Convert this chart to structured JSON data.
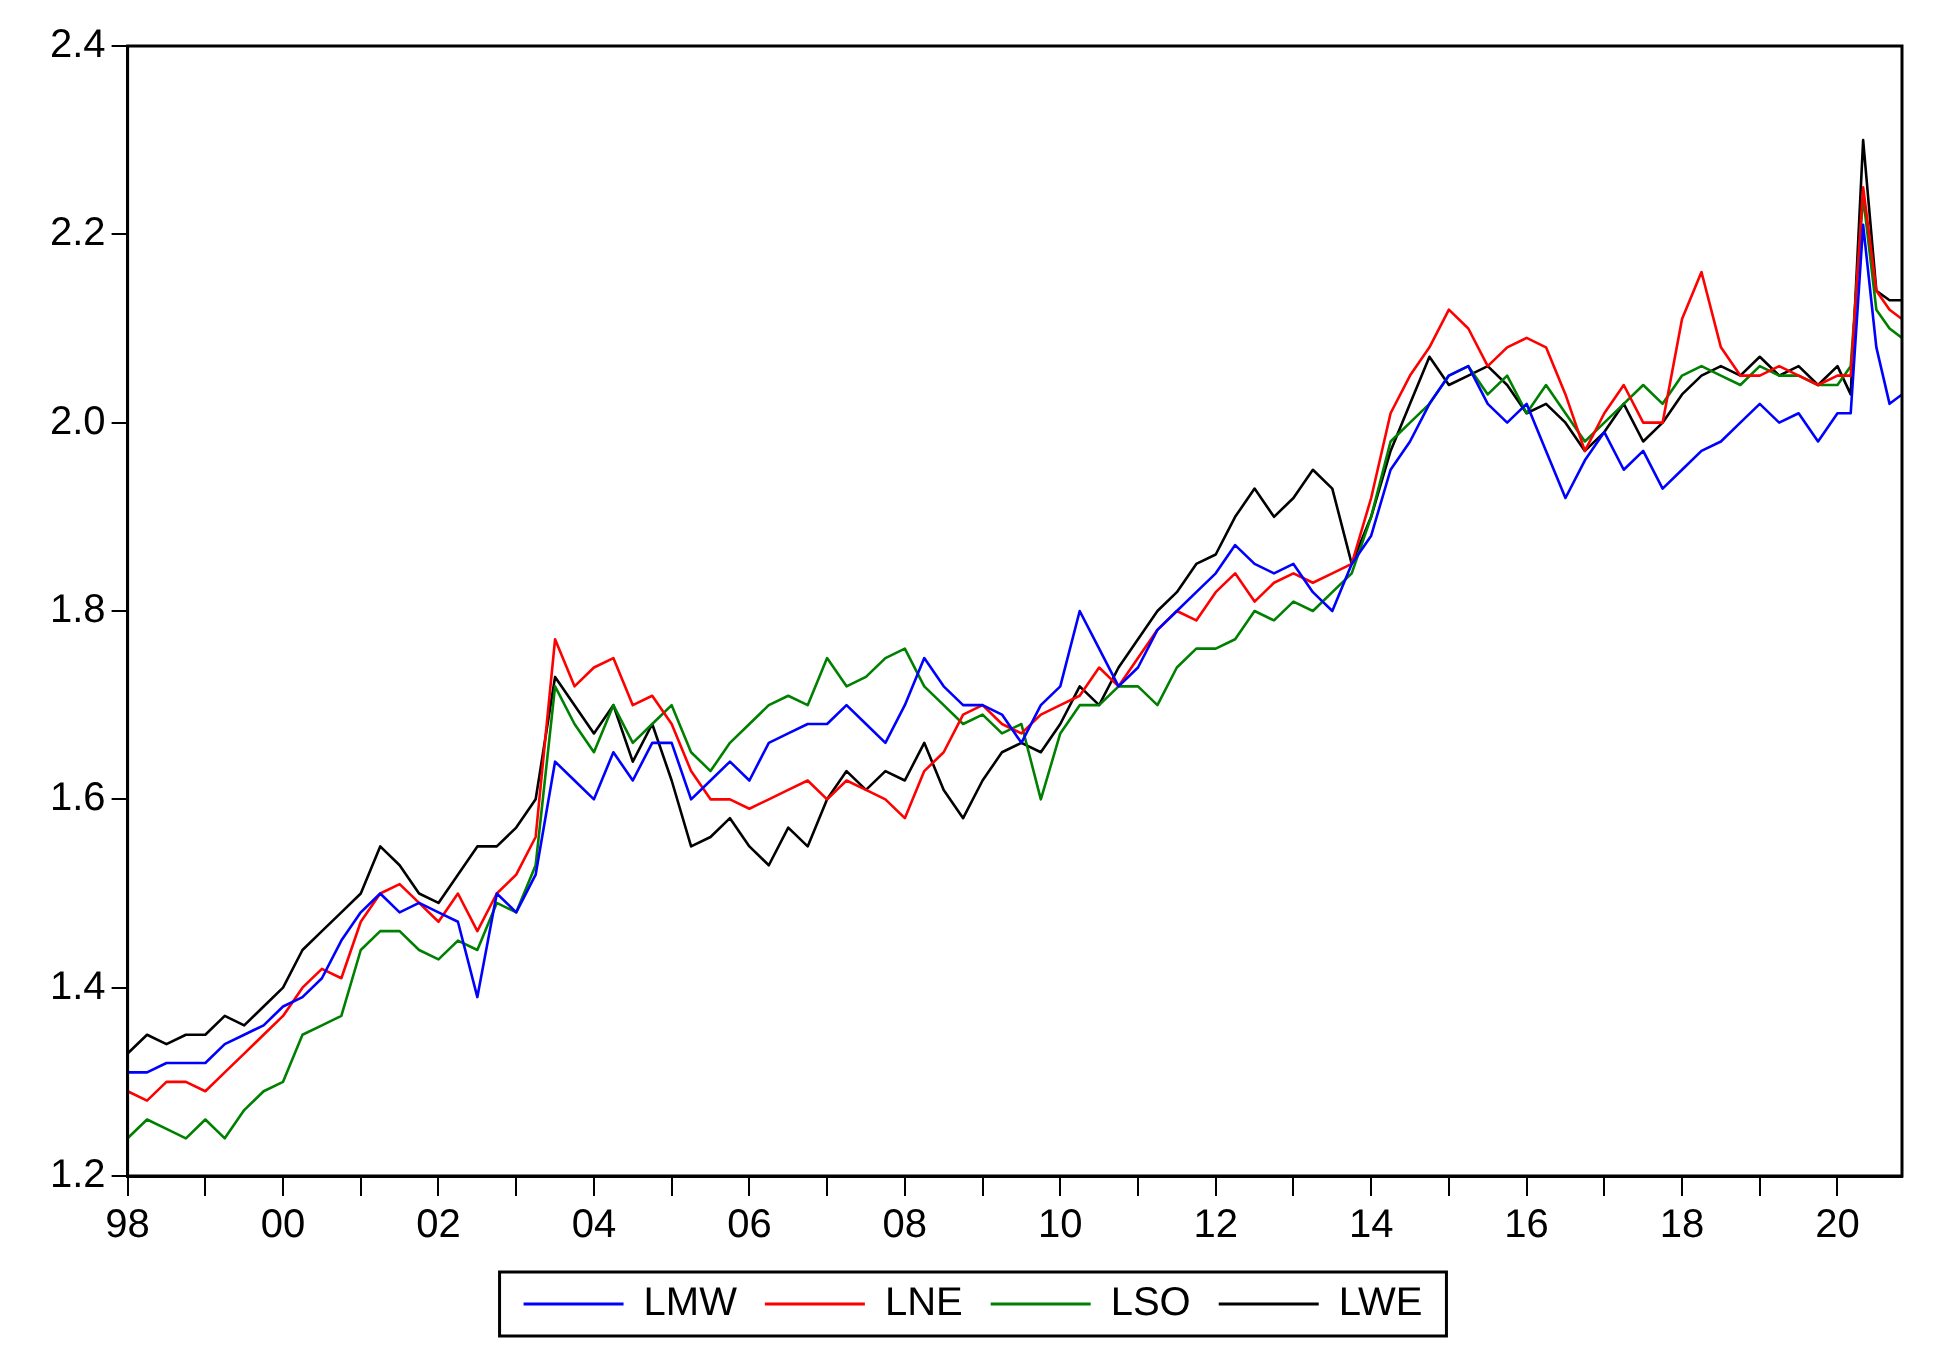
{
  "chart_data": {
    "type": "line",
    "x": [
      1998,
      1998.25,
      1998.5,
      1998.75,
      1999,
      1999.25,
      1999.5,
      1999.75,
      2000,
      2000.25,
      2000.5,
      2000.75,
      2001,
      2001.25,
      2001.5,
      2001.75,
      2002,
      2002.25,
      2002.5,
      2002.75,
      2003,
      2003.25,
      2003.5,
      2003.75,
      2004,
      2004.25,
      2004.5,
      2004.75,
      2005,
      2005.25,
      2005.5,
      2005.75,
      2006,
      2006.25,
      2006.5,
      2006.75,
      2007,
      2007.25,
      2007.5,
      2007.75,
      2008,
      2008.25,
      2008.5,
      2008.75,
      2009,
      2009.25,
      2009.5,
      2009.75,
      2010,
      2010.25,
      2010.5,
      2010.75,
      2011,
      2011.25,
      2011.5,
      2011.75,
      2012,
      2012.25,
      2012.5,
      2012.75,
      2013,
      2013.25,
      2013.5,
      2013.75,
      2014,
      2014.25,
      2014.5,
      2014.75,
      2015,
      2015.25,
      2015.5,
      2015.75,
      2016,
      2016.25,
      2016.5,
      2016.75,
      2017,
      2017.25,
      2017.5,
      2017.75,
      2018,
      2018.25,
      2018.5,
      2018.75,
      2019,
      2019.25,
      2019.5,
      2019.75,
      2020,
      2020.17,
      2020.33,
      2020.5,
      2020.67,
      2020.83
    ],
    "series": [
      {
        "name": "LMW",
        "color": "#0000ff",
        "values": [
          1.31,
          1.31,
          1.32,
          1.32,
          1.32,
          1.34,
          1.35,
          1.36,
          1.38,
          1.39,
          1.41,
          1.45,
          1.48,
          1.5,
          1.48,
          1.49,
          1.48,
          1.47,
          1.39,
          1.5,
          1.48,
          1.52,
          1.64,
          1.62,
          1.6,
          1.65,
          1.62,
          1.66,
          1.66,
          1.6,
          1.62,
          1.64,
          1.62,
          1.66,
          1.67,
          1.68,
          1.68,
          1.7,
          1.68,
          1.66,
          1.7,
          1.75,
          1.72,
          1.7,
          1.7,
          1.69,
          1.66,
          1.7,
          1.72,
          1.8,
          1.76,
          1.72,
          1.74,
          1.78,
          1.8,
          1.82,
          1.84,
          1.87,
          1.85,
          1.84,
          1.85,
          1.82,
          1.8,
          1.85,
          1.88,
          1.95,
          1.98,
          2.02,
          2.05,
          2.06,
          2.02,
          2.0,
          2.02,
          1.97,
          1.92,
          1.96,
          1.99,
          1.95,
          1.97,
          1.93,
          1.95,
          1.97,
          1.98,
          2.0,
          2.02,
          2.0,
          2.01,
          1.98,
          2.01,
          2.01,
          2.21,
          2.08,
          2.02,
          2.03
        ]
      },
      {
        "name": "LNE",
        "color": "#ff0000",
        "values": [
          1.29,
          1.28,
          1.3,
          1.3,
          1.29,
          1.31,
          1.33,
          1.35,
          1.37,
          1.4,
          1.42,
          1.41,
          1.47,
          1.5,
          1.51,
          1.49,
          1.47,
          1.5,
          1.46,
          1.5,
          1.52,
          1.56,
          1.77,
          1.72,
          1.74,
          1.75,
          1.7,
          1.71,
          1.68,
          1.63,
          1.6,
          1.6,
          1.59,
          1.6,
          1.61,
          1.62,
          1.6,
          1.62,
          1.61,
          1.6,
          1.58,
          1.63,
          1.65,
          1.69,
          1.7,
          1.68,
          1.67,
          1.69,
          1.7,
          1.71,
          1.74,
          1.72,
          1.75,
          1.78,
          1.8,
          1.79,
          1.82,
          1.84,
          1.81,
          1.83,
          1.84,
          1.83,
          1.84,
          1.85,
          1.92,
          2.01,
          2.05,
          2.08,
          2.12,
          2.1,
          2.06,
          2.08,
          2.09,
          2.08,
          2.03,
          1.97,
          2.01,
          2.04,
          2.0,
          2.0,
          2.11,
          2.16,
          2.08,
          2.05,
          2.05,
          2.06,
          2.05,
          2.04,
          2.05,
          2.05,
          2.25,
          2.14,
          2.12,
          2.11
        ]
      },
      {
        "name": "LSO",
        "color": "#008000",
        "values": [
          1.24,
          1.26,
          1.25,
          1.24,
          1.26,
          1.24,
          1.27,
          1.29,
          1.3,
          1.35,
          1.36,
          1.37,
          1.44,
          1.46,
          1.46,
          1.44,
          1.43,
          1.45,
          1.44,
          1.49,
          1.48,
          1.53,
          1.72,
          1.68,
          1.65,
          1.7,
          1.66,
          1.68,
          1.7,
          1.65,
          1.63,
          1.66,
          1.68,
          1.7,
          1.71,
          1.7,
          1.75,
          1.72,
          1.73,
          1.75,
          1.76,
          1.72,
          1.7,
          1.68,
          1.69,
          1.67,
          1.68,
          1.6,
          1.67,
          1.7,
          1.7,
          1.72,
          1.72,
          1.7,
          1.74,
          1.76,
          1.76,
          1.77,
          1.8,
          1.79,
          1.81,
          1.8,
          1.82,
          1.84,
          1.9,
          1.98,
          2.0,
          2.02,
          2.05,
          2.06,
          2.03,
          2.05,
          2.01,
          2.04,
          2.01,
          1.98,
          2.0,
          2.02,
          2.04,
          2.02,
          2.05,
          2.06,
          2.05,
          2.04,
          2.06,
          2.05,
          2.05,
          2.04,
          2.04,
          2.06,
          2.24,
          2.12,
          2.1,
          2.09
        ]
      },
      {
        "name": "LWE",
        "color": "#000000",
        "values": [
          1.33,
          1.35,
          1.34,
          1.35,
          1.35,
          1.37,
          1.36,
          1.38,
          1.4,
          1.44,
          1.46,
          1.48,
          1.5,
          1.55,
          1.53,
          1.5,
          1.49,
          1.52,
          1.55,
          1.55,
          1.57,
          1.6,
          1.73,
          1.7,
          1.67,
          1.7,
          1.64,
          1.68,
          1.62,
          1.55,
          1.56,
          1.58,
          1.55,
          1.53,
          1.57,
          1.55,
          1.6,
          1.63,
          1.61,
          1.63,
          1.62,
          1.66,
          1.61,
          1.58,
          1.62,
          1.65,
          1.66,
          1.65,
          1.68,
          1.72,
          1.7,
          1.74,
          1.77,
          1.8,
          1.82,
          1.85,
          1.86,
          1.9,
          1.93,
          1.9,
          1.92,
          1.95,
          1.93,
          1.85,
          1.9,
          1.97,
          2.02,
          2.07,
          2.04,
          2.05,
          2.06,
          2.04,
          2.01,
          2.02,
          2.0,
          1.97,
          1.99,
          2.02,
          1.98,
          2.0,
          2.03,
          2.05,
          2.06,
          2.05,
          2.07,
          2.05,
          2.06,
          2.04,
          2.06,
          2.03,
          2.3,
          2.14,
          2.13,
          2.13
        ]
      }
    ],
    "xlim": [
      1998,
      2020.83
    ],
    "xticks": [
      {
        "value": 1998,
        "label": "98"
      },
      {
        "value": 1999,
        "label": null
      },
      {
        "value": 2000,
        "label": "00"
      },
      {
        "value": 2001,
        "label": null
      },
      {
        "value": 2002,
        "label": "02"
      },
      {
        "value": 2003,
        "label": null
      },
      {
        "value": 2004,
        "label": "04"
      },
      {
        "value": 2005,
        "label": null
      },
      {
        "value": 2006,
        "label": "06"
      },
      {
        "value": 2007,
        "label": null
      },
      {
        "value": 2008,
        "label": "08"
      },
      {
        "value": 2009,
        "label": null
      },
      {
        "value": 2010,
        "label": "10"
      },
      {
        "value": 2011,
        "label": null
      },
      {
        "value": 2012,
        "label": "12"
      },
      {
        "value": 2013,
        "label": null
      },
      {
        "value": 2014,
        "label": "14"
      },
      {
        "value": 2015,
        "label": null
      },
      {
        "value": 2016,
        "label": "16"
      },
      {
        "value": 2017,
        "label": null
      },
      {
        "value": 2018,
        "label": "18"
      },
      {
        "value": 2019,
        "label": null
      },
      {
        "value": 2020,
        "label": "20"
      }
    ],
    "ylim": [
      1.2,
      2.4
    ],
    "yticks": [
      1.2,
      1.4,
      1.6,
      1.8,
      {
        "value": 2.0,
        "label": "2.0"
      },
      2.2,
      2.4
    ],
    "grid": false,
    "legend": "bottom",
    "marker": "none",
    "line_style": "solid"
  }
}
